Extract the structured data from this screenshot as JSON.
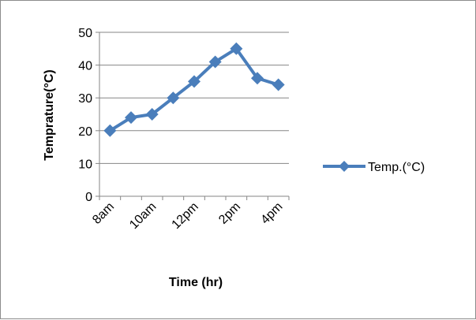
{
  "chart_data": {
    "type": "line",
    "categories": [
      "8am",
      "9am",
      "10am",
      "11am",
      "12pm",
      "1pm",
      "2pm",
      "3pm",
      "4pm"
    ],
    "x_tick_labels": [
      "8am",
      "",
      "10am",
      "",
      "12pm",
      "",
      "2pm",
      "",
      "4pm"
    ],
    "series": [
      {
        "name": "Temp.(°C)",
        "values": [
          20,
          24,
          25,
          30,
          35,
          41,
          45,
          36,
          34
        ],
        "color": "#4a7ebb",
        "marker": "diamond"
      }
    ],
    "y_ticks": [
      0,
      10,
      20,
      30,
      40,
      50
    ],
    "ylim": [
      0,
      50
    ],
    "xlabel": "Time (hr)",
    "ylabel": "Temprature(°C)",
    "grid": "horizontal",
    "legend_position": "right"
  }
}
